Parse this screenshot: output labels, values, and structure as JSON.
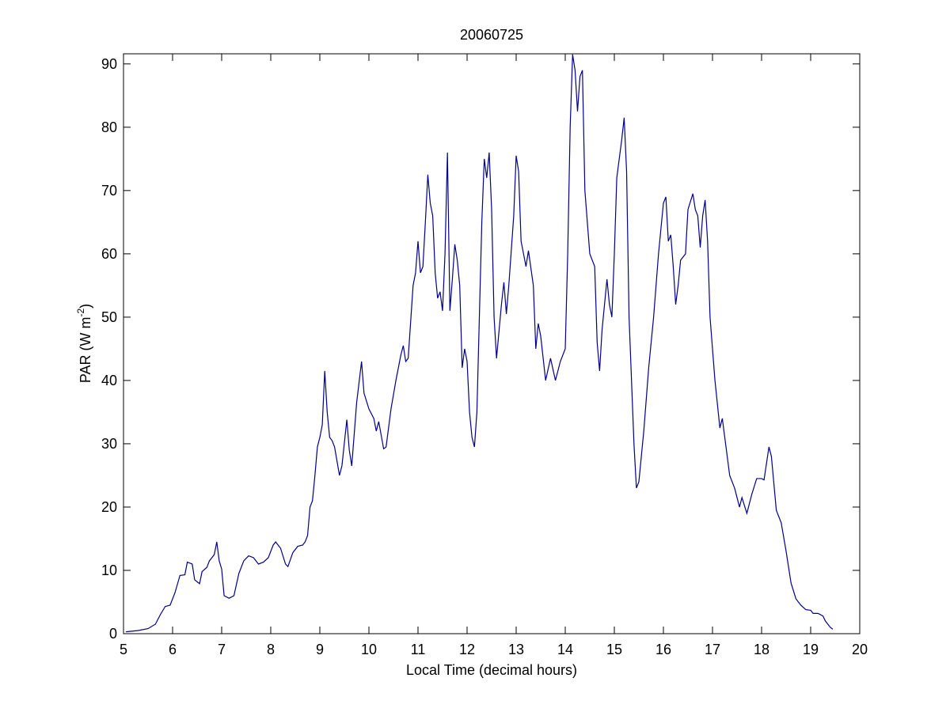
{
  "chart_data": {
    "type": "line",
    "title": "20060725",
    "xlabel": "Local Time (decimal hours)",
    "ylabel": {
      "base": "PAR (W m",
      "superscript": "-2",
      "suffix": ")"
    },
    "xlim": [
      5,
      20
    ],
    "ylim": [
      0,
      91.6
    ],
    "xticks": [
      5,
      6,
      7,
      8,
      9,
      10,
      11,
      12,
      13,
      14,
      15,
      16,
      17,
      18,
      19,
      20
    ],
    "yticks": [
      0,
      10,
      20,
      30,
      40,
      50,
      60,
      70,
      80,
      90
    ],
    "grid": false,
    "box": true,
    "series": [
      {
        "color": "#00008b",
        "x": [
          5.05,
          5.3,
          5.5,
          5.65,
          5.75,
          5.85,
          5.95,
          6.05,
          6.15,
          6.25,
          6.3,
          6.4,
          6.45,
          6.55,
          6.6,
          6.7,
          6.75,
          6.85,
          6.9,
          6.95,
          7.0,
          7.05,
          7.15,
          7.25,
          7.35,
          7.45,
          7.55,
          7.65,
          7.75,
          7.85,
          7.95,
          8.05,
          8.1,
          8.2,
          8.3,
          8.35,
          8.45,
          8.55,
          8.65,
          8.7,
          8.75,
          8.8,
          8.85,
          8.9,
          8.95,
          9.0,
          9.05,
          9.1,
          9.15,
          9.2,
          9.25,
          9.3,
          9.4,
          9.45,
          9.55,
          9.6,
          9.65,
          9.75,
          9.85,
          9.9,
          10.0,
          10.1,
          10.15,
          10.2,
          10.3,
          10.35,
          10.45,
          10.55,
          10.65,
          10.7,
          10.75,
          10.8,
          10.9,
          10.95,
          11.0,
          11.05,
          11.1,
          11.15,
          11.2,
          11.25,
          11.3,
          11.35,
          11.4,
          11.45,
          11.5,
          11.55,
          11.6,
          11.65,
          11.7,
          11.75,
          11.8,
          11.85,
          11.9,
          11.95,
          12.0,
          12.05,
          12.1,
          12.15,
          12.2,
          12.25,
          12.3,
          12.35,
          12.4,
          12.45,
          12.5,
          12.55,
          12.6,
          12.7,
          12.75,
          12.8,
          12.85,
          12.95,
          13.0,
          13.05,
          13.1,
          13.2,
          13.25,
          13.35,
          13.4,
          13.45,
          13.5,
          13.6,
          13.7,
          13.8,
          13.9,
          14.0,
          14.05,
          14.1,
          14.15,
          14.2,
          14.25,
          14.3,
          14.35,
          14.4,
          14.5,
          14.6,
          14.65,
          14.7,
          14.75,
          14.85,
          14.9,
          14.95,
          15.0,
          15.05,
          15.15,
          15.2,
          15.25,
          15.3,
          15.4,
          15.45,
          15.5,
          15.6,
          15.7,
          15.8,
          15.85,
          15.9,
          16.0,
          16.05,
          16.1,
          16.15,
          16.2,
          16.25,
          16.3,
          16.35,
          16.45,
          16.5,
          16.6,
          16.65,
          16.7,
          16.75,
          16.8,
          16.85,
          16.9,
          16.95,
          17.05,
          17.15,
          17.2,
          17.25,
          17.35,
          17.45,
          17.55,
          17.6,
          17.7,
          17.8,
          17.9,
          18.0,
          18.05,
          18.15,
          18.2,
          18.3,
          18.4,
          18.5,
          18.6,
          18.7,
          18.8,
          18.9,
          19.0,
          19.05,
          19.15,
          19.25,
          19.3,
          19.4,
          19.45
        ],
        "values": [
          0.3,
          0.5,
          0.8,
          1.5,
          3,
          4.3,
          4.5,
          6.5,
          9.2,
          9.3,
          11.3,
          11,
          8.5,
          7.9,
          9.8,
          10.5,
          11.5,
          12.5,
          14.5,
          11.5,
          10.2,
          6,
          5.6,
          6,
          9.5,
          11.5,
          12.3,
          12,
          11,
          11.3,
          12,
          14,
          14.5,
          13.5,
          11,
          10.6,
          12.8,
          13.8,
          14,
          14.5,
          15.5,
          20,
          21,
          25,
          29.5,
          31,
          33,
          41.5,
          35,
          31,
          30.5,
          29.5,
          25,
          26.5,
          33.8,
          29,
          26.5,
          36.5,
          43,
          38,
          35.5,
          34,
          32,
          33.5,
          29.2,
          29.5,
          35.5,
          40,
          44,
          45.5,
          43,
          43.5,
          55,
          57,
          62,
          57,
          58,
          65,
          72.5,
          68,
          66,
          57,
          53,
          54,
          51,
          60,
          76,
          51,
          56,
          61.5,
          59,
          55,
          42,
          45,
          43,
          35,
          31,
          29.5,
          35,
          50,
          65,
          75,
          72,
          76,
          67,
          50,
          43.5,
          52,
          55.5,
          50.5,
          55,
          66,
          75.5,
          73,
          62,
          58,
          60.5,
          55,
          45,
          49,
          47,
          40,
          43.5,
          40,
          43,
          45,
          60,
          80,
          91.5,
          89,
          82.5,
          88,
          89,
          70,
          60,
          58,
          46,
          41.5,
          48,
          56,
          52,
          50,
          60,
          72,
          78,
          81.5,
          73,
          50,
          30,
          23,
          24,
          32,
          42,
          50,
          55,
          60,
          68,
          69,
          62,
          63,
          58,
          52,
          55,
          59,
          60,
          67,
          69.5,
          67,
          66,
          61,
          66,
          68.5,
          62,
          50,
          40,
          32.5,
          34,
          31,
          25,
          23,
          20,
          21.5,
          19,
          22,
          24.5,
          24.5,
          24.3,
          29.5,
          28,
          19.5,
          17.5,
          13,
          8,
          5.5,
          4.5,
          3.8,
          3.7,
          3.2,
          3.2,
          2.8,
          2,
          1,
          0.7
        ]
      }
    ]
  }
}
